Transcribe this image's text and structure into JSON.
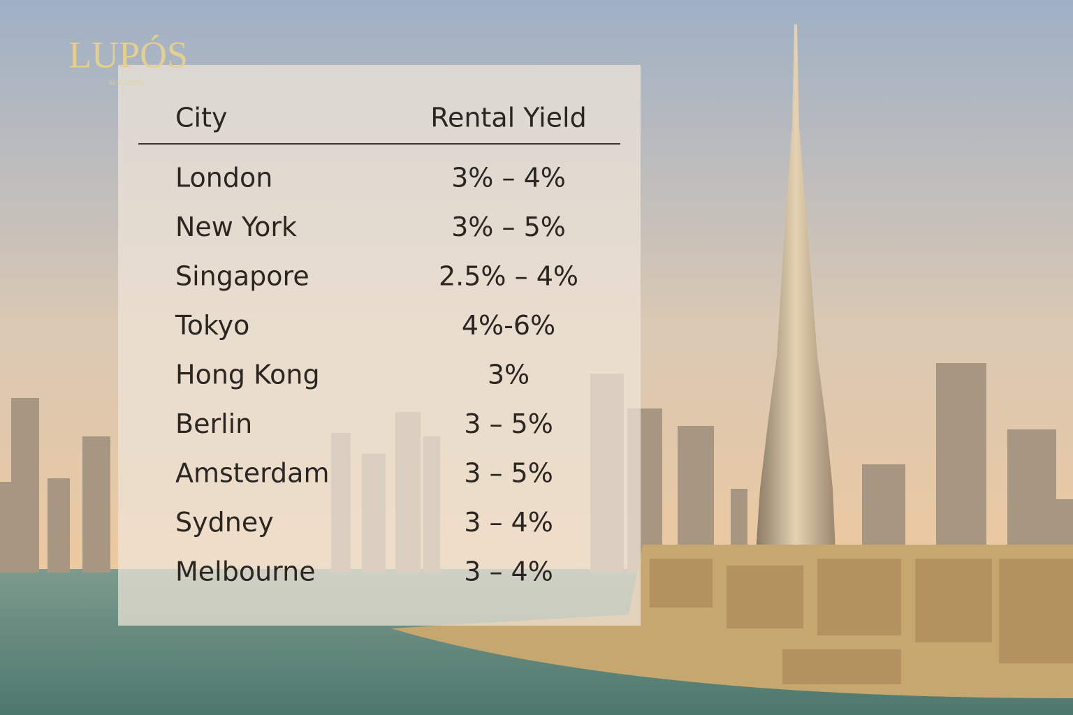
{
  "brand": {
    "name": "LUPÓS",
    "tagline": "REAL ESTATE"
  },
  "table": {
    "header": [
      "City",
      "Rental Yield"
    ],
    "rows": [
      [
        "London",
        "3% – 4%"
      ],
      [
        "New York",
        "3% – 5%"
      ],
      [
        "Singapore",
        "2.5% – 4%"
      ],
      [
        "Tokyo",
        "4%-6%"
      ],
      [
        "Hong Kong",
        "3%"
      ],
      [
        "Berlin",
        "3 – 5%"
      ],
      [
        "Amsterdam",
        "3 – 5%"
      ],
      [
        "Sydney",
        "3 – 4%"
      ],
      [
        "Melbourne",
        "3 – 4%"
      ]
    ]
  }
}
